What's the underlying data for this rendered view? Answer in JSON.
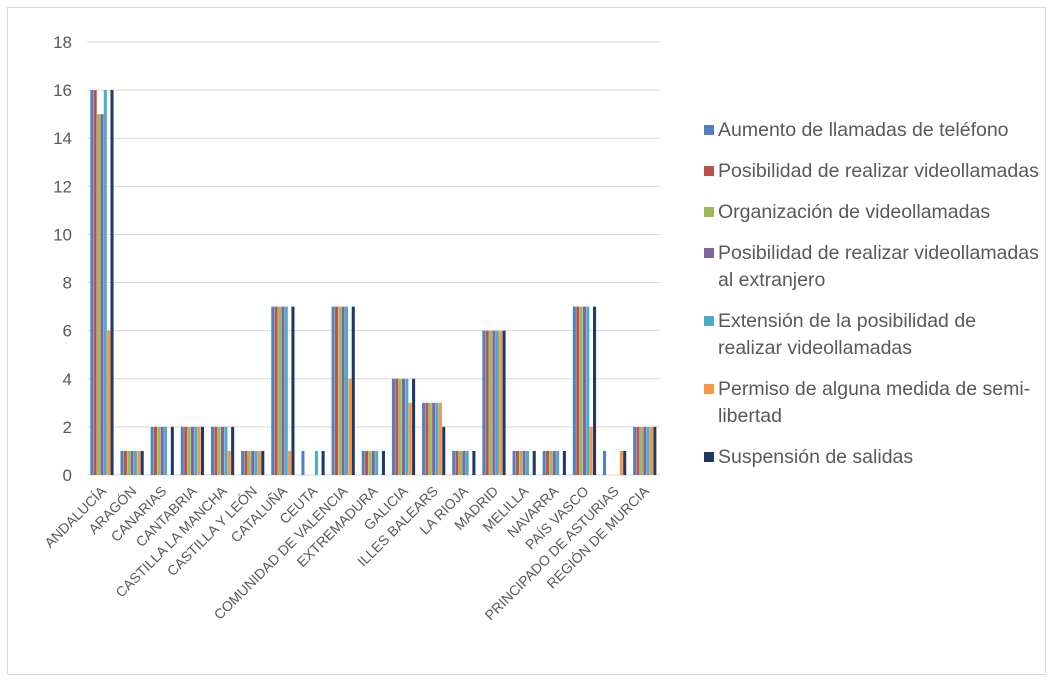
{
  "chart_data": {
    "type": "bar",
    "title": "",
    "xlabel": "",
    "ylabel": "",
    "ylim": [
      0,
      18
    ],
    "yticks": [
      0,
      2,
      4,
      6,
      8,
      10,
      12,
      14,
      16,
      18
    ],
    "grid": true,
    "legend_position": "right",
    "categories": [
      "ANDALUCÍA",
      "ARAGÓN",
      "CANARIAS",
      "CANTABRIA",
      "CASTILLA LA MANCHA",
      "CASTILLA Y LEÓN",
      "CATALUÑA",
      "CEUTA",
      "COMUNIDAD DE VALENCIA",
      "EXTREMADURA",
      "GALICIA",
      "ILLES BALEARS",
      "LA RIOJA",
      "MADRID",
      "MELILLA",
      "NAVARRA",
      "PAÍS VASCO",
      "PRINCIPADO DE ASTURIAS",
      "REGIÓN DE MURCIA"
    ],
    "series": [
      {
        "name": "Aumento de llamadas de teléfono",
        "color": "#4f81bd",
        "values": [
          16,
          1,
          2,
          2,
          2,
          1,
          7,
          1,
          7,
          1,
          4,
          3,
          1,
          6,
          1,
          1,
          7,
          1,
          2
        ]
      },
      {
        "name": "Posibilidad de realizar videollamadas",
        "color": "#c0504d",
        "values": [
          16,
          1,
          2,
          2,
          2,
          1,
          7,
          0,
          7,
          1,
          4,
          3,
          1,
          6,
          1,
          1,
          7,
          0,
          2
        ]
      },
      {
        "name": "Organización de videollamadas",
        "color": "#9bbb59",
        "values": [
          15,
          1,
          2,
          2,
          2,
          1,
          7,
          0,
          7,
          1,
          4,
          3,
          1,
          6,
          1,
          1,
          7,
          0,
          2
        ]
      },
      {
        "name": "Posibilidad de realizar videollamadas al extranjero",
        "color": "#8064a2",
        "values": [
          15,
          1,
          2,
          2,
          2,
          1,
          7,
          0,
          7,
          1,
          4,
          3,
          1,
          6,
          1,
          1,
          7,
          0,
          2
        ]
      },
      {
        "name": "Extensión de la posibilidad de realizar videollamadas",
        "color": "#4bacc6",
        "values": [
          16,
          1,
          2,
          2,
          2,
          1,
          7,
          1,
          7,
          1,
          4,
          3,
          1,
          6,
          1,
          1,
          7,
          0,
          2
        ]
      },
      {
        "name": "Permiso de alguna medida de semi-libertad",
        "color": "#f79646",
        "values": [
          6,
          1,
          0,
          2,
          1,
          1,
          1,
          0,
          4,
          0,
          3,
          3,
          0,
          6,
          0,
          0,
          2,
          1,
          2
        ]
      },
      {
        "name": "Suspensión de salidas",
        "color": "#1f3864",
        "values": [
          16,
          1,
          2,
          2,
          2,
          1,
          7,
          1,
          7,
          1,
          4,
          2,
          1,
          6,
          1,
          1,
          7,
          1,
          2
        ]
      }
    ]
  }
}
